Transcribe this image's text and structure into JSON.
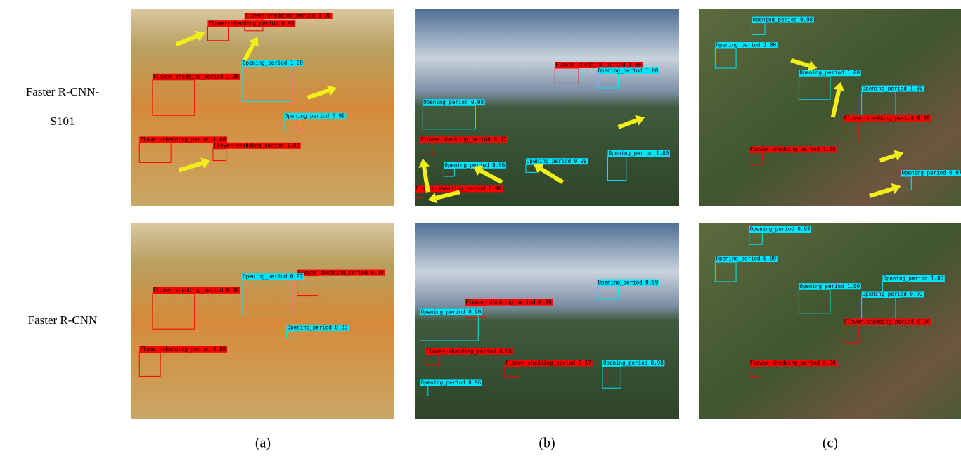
{
  "row_labels": [
    [
      "Faster R-CNN-",
      "S101"
    ],
    [
      "Faster R-CNN"
    ]
  ],
  "column_labels": [
    "(a)",
    "(b)",
    "(c)"
  ],
  "panels": [
    [
      {
        "detections": [
          "Flower-shedding_period 1.00",
          "Flower-shedding_period 0.98",
          "Opening_period 1.00",
          "Flower-shedding_period 1.00",
          "Opening_period 0.99",
          "Flower-shedding_period 1.00",
          "Flower-shedding_period 1.00"
        ]
      },
      {
        "detections": [
          "Flower-shedding_period 1.00",
          "Opening_period 1.00",
          "Opening_period 0.98",
          "Flower-shedding_period 0.92",
          "Opening_period 0.96",
          "Opening_period 0.99",
          "Opening_period 1.00",
          "Flower-shedding_period 0.90"
        ]
      },
      {
        "detections": [
          "Opening_period 0.98",
          "Opening_period 1.00",
          "Opening_period 1.00",
          "Opening_period 1.00",
          "Flower-shedding_period 0.98",
          "Flower-shedding_period 1.00",
          "Opening_period 0.97"
        ]
      }
    ],
    [
      {
        "detections": [
          "Flower-shedding_period 0.99",
          "Opening_period 0.97",
          "Flower-shedding_period 0.96",
          "Opening_period 0.83",
          "Flower-shedding_period 0.88"
        ]
      },
      {
        "detections": [
          "Opening_period 0.99",
          "Flower-shedding_period 0.99",
          "Opening_period 0.90",
          "Flower-shedding_period 0.90",
          "Flower-shedding_period 0.87",
          "Opening_period 0.98",
          "Opening_period 0.96"
        ]
      },
      {
        "detections": [
          "Opening_period 0.93",
          "Opening_period 0.99",
          "Opening_period 1.00",
          "Opening_period 1.00",
          "Opening_period 0.99",
          "Flower-shedding_period 0.96",
          "Flower-shedding_period 0.90"
        ]
      }
    ]
  ]
}
